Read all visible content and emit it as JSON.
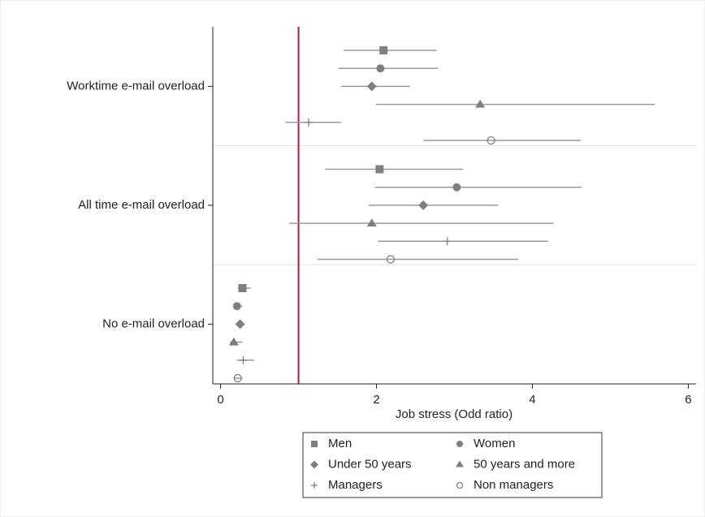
{
  "chart_data": {
    "type": "forest",
    "xlabel": "Job stress (Odd ratio)",
    "categories": [
      "Worktime e-mail overload",
      "All time e-mail overload",
      "No e-mail overload"
    ],
    "xlim": [
      -0.1,
      6.1
    ],
    "xticks": [
      0,
      2,
      4,
      6
    ],
    "reference_line": 1,
    "reference_color": "#b0125b",
    "series": [
      {
        "name": "Men",
        "marker": "square",
        "color": "#7f7f7f",
        "values": [
          2.09,
          2.04,
          0.28
        ],
        "ci_low": [
          1.58,
          1.34,
          0.22
        ],
        "ci_high": [
          2.77,
          3.11,
          0.39
        ]
      },
      {
        "name": "Women",
        "marker": "circle",
        "color": "#7f7f7f",
        "values": [
          2.05,
          3.03,
          0.21
        ],
        "ci_low": [
          1.51,
          1.98,
          0.16
        ],
        "ci_high": [
          2.79,
          4.63,
          0.28
        ]
      },
      {
        "name": "Under 50 years",
        "marker": "diamond",
        "color": "#7f7f7f",
        "values": [
          1.94,
          2.6,
          0.25
        ],
        "ci_low": [
          1.55,
          1.9,
          0.22
        ],
        "ci_high": [
          2.43,
          3.56,
          0.28
        ]
      },
      {
        "name": "50 years and more",
        "marker": "triangle",
        "color": "#7f7f7f",
        "values": [
          3.33,
          1.94,
          0.17
        ],
        "ci_low": [
          1.99,
          0.88,
          0.12
        ],
        "ci_high": [
          5.57,
          4.27,
          0.28
        ]
      },
      {
        "name": "Managers",
        "marker": "plus",
        "color": "#7f7f7f",
        "values": [
          1.13,
          2.91,
          0.29
        ],
        "ci_low": [
          0.83,
          2.02,
          0.21
        ],
        "ci_high": [
          1.55,
          4.2,
          0.43
        ]
      },
      {
        "name": "Non managers",
        "marker": "hollow-circle",
        "color": "#7f7f7f",
        "values": [
          3.47,
          2.18,
          0.22
        ],
        "ci_low": [
          2.6,
          1.24,
          0.18
        ],
        "ci_high": [
          4.62,
          3.82,
          0.28
        ]
      }
    ]
  }
}
